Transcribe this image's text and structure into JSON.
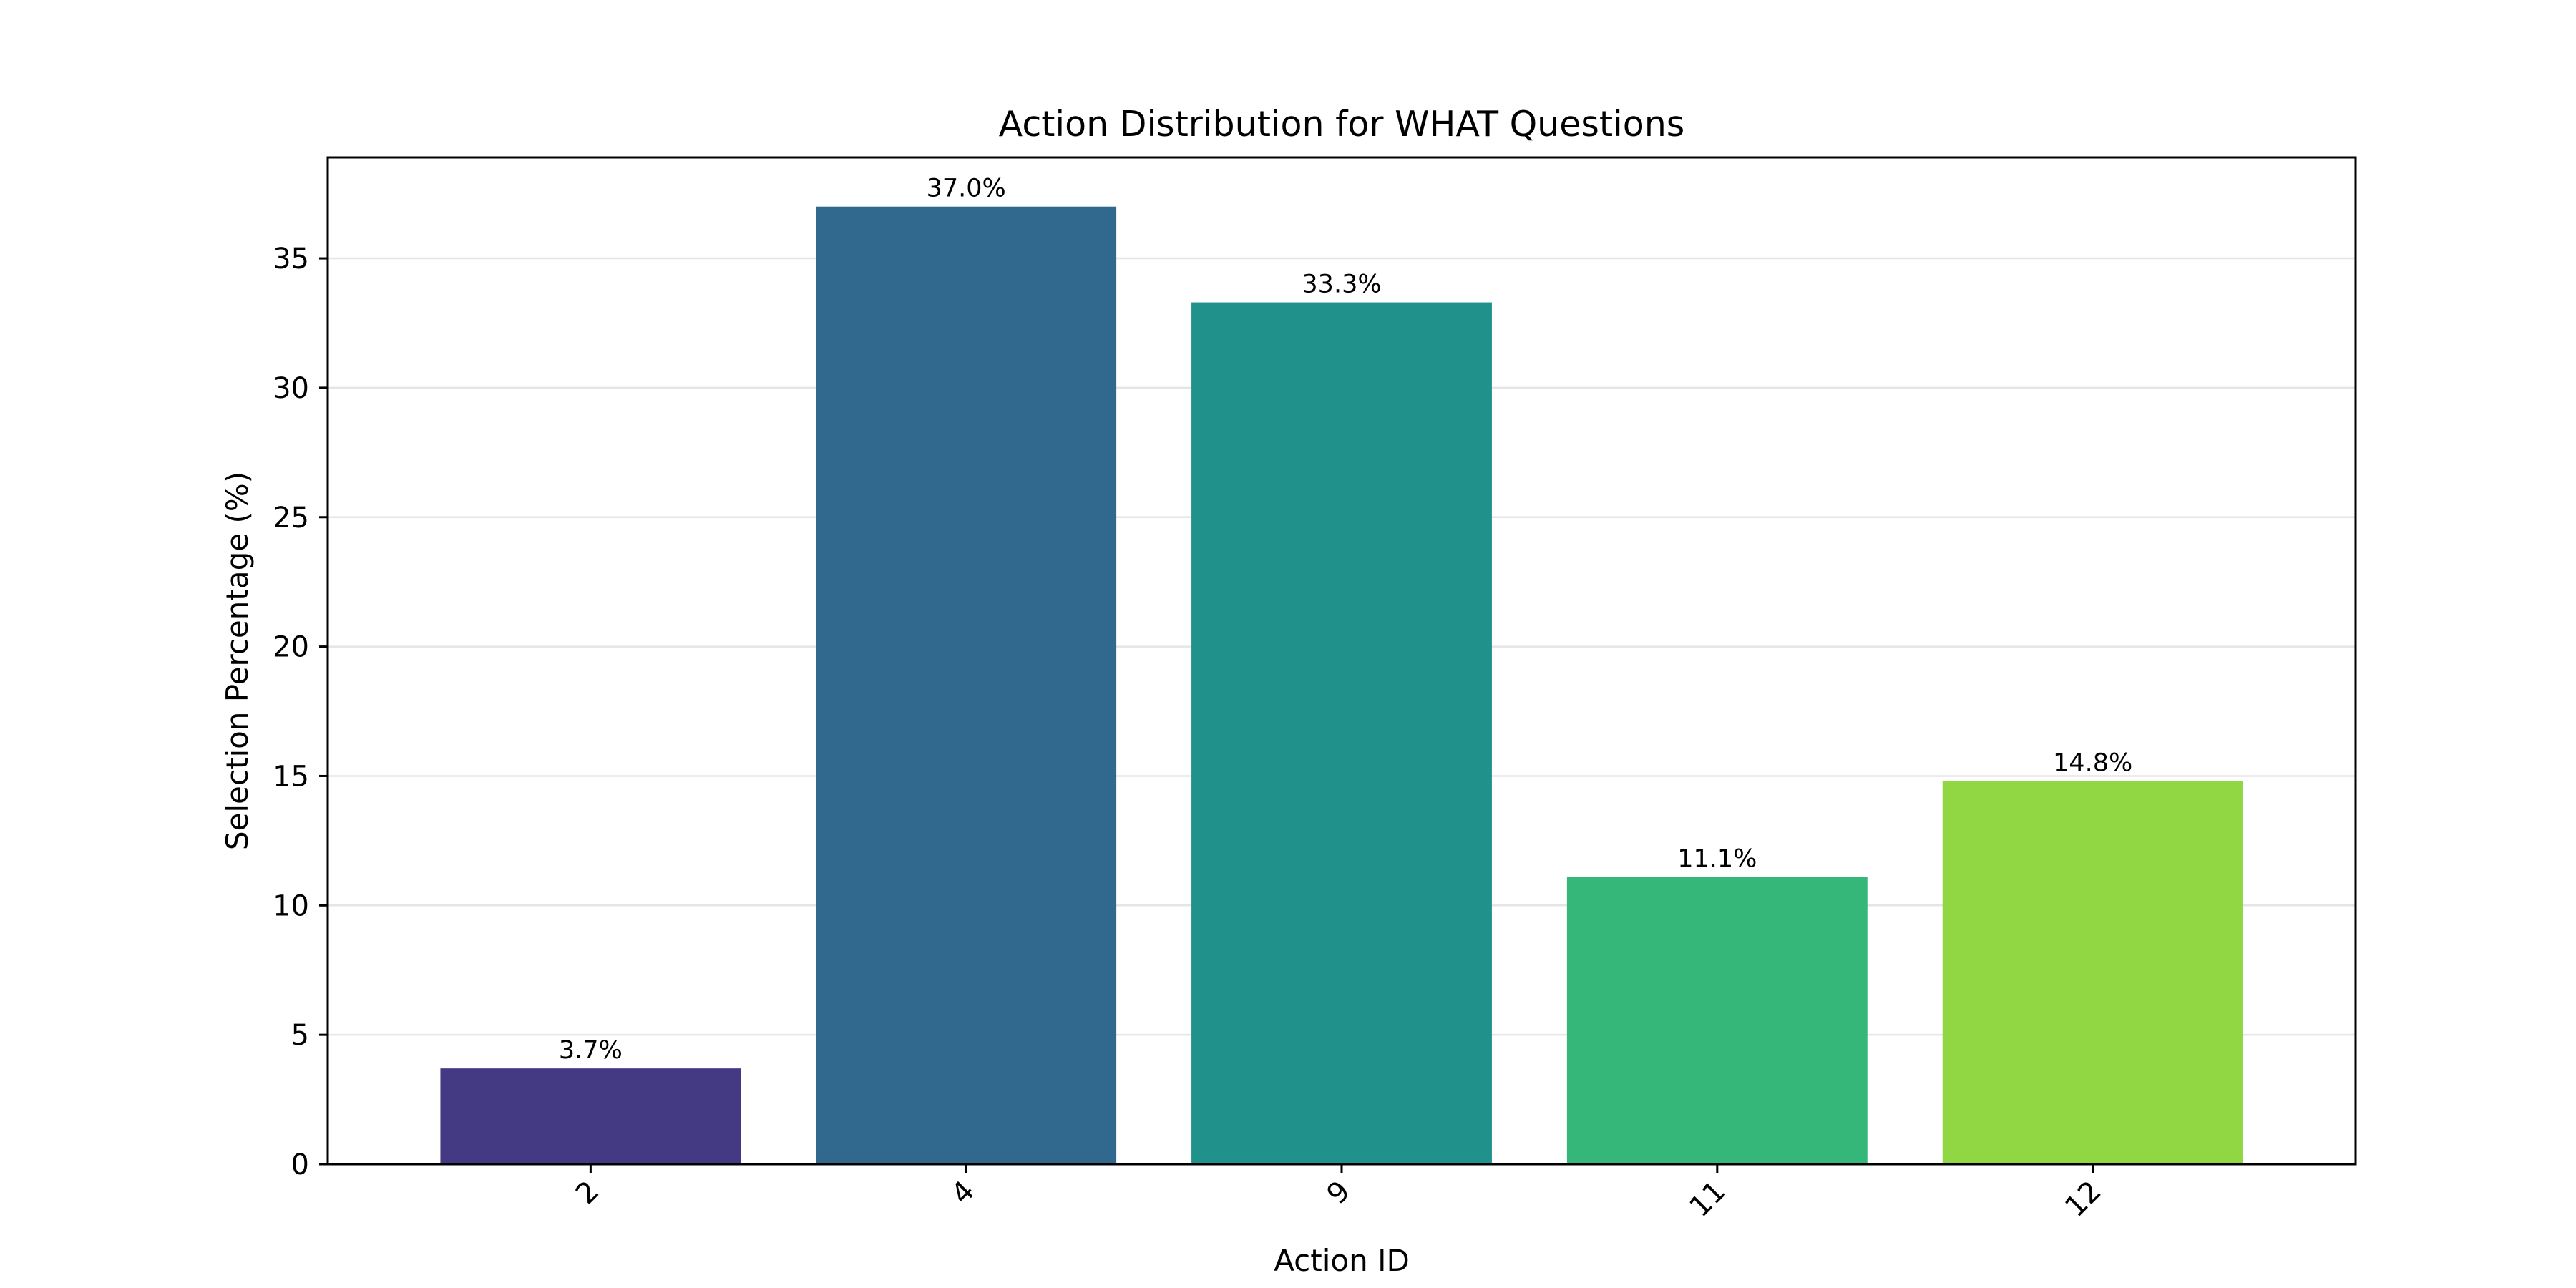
{
  "chart_data": {
    "type": "bar",
    "title": "Action Distribution for WHAT Questions",
    "xlabel": "Action ID",
    "ylabel": "Selection Percentage (%)",
    "categories": [
      "2",
      "4",
      "9",
      "11",
      "12"
    ],
    "values": [
      3.7,
      37.0,
      33.3,
      11.1,
      14.8
    ],
    "data_labels": [
      "3.7%",
      "37.0%",
      "33.3%",
      "11.1%",
      "14.8%"
    ],
    "bar_colors": [
      "#443983",
      "#31688e",
      "#21918c",
      "#35b779",
      "#90d743"
    ],
    "ylim": [
      0,
      38.9
    ],
    "yticks": [
      0,
      5,
      10,
      15,
      20,
      25,
      30,
      35
    ],
    "xtick_rotation": "45 degrees",
    "grid": "horizontal",
    "legend": "none"
  }
}
